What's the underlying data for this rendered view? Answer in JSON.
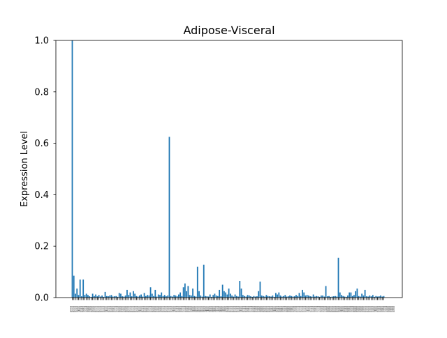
{
  "chart_data": {
    "type": "bar",
    "title": "Adipose-Visceral",
    "xlabel": "",
    "ylabel": "Expression Level",
    "ylim": [
      0,
      1.0
    ],
    "yticks": [
      "0.0",
      "0.2",
      "0.4",
      "0.6",
      "0.8",
      "1.0"
    ],
    "xtick_label_text": "012345678910111213141516171819202122232425262728293031323334353637383940414243444546474849505152535455565758596061626364656667686970717273747576777879808182838485868788899091929394959697989910010110210310410510610710810911011111211311411511611711811912012112212312412512612712812913013113213313413513613713813914014114214314414514614714814915015115215315415515615715815916016116216316416516616716816917017117217317417517617717817918018118218318418518618718818919019119219319419519619719819920020120220320420520620720820921021121221321421521621721821922022122222322422522622722822923023123223323423523623723823924024124224324424524624724824925025125225325425525625725825926026126226326426526626726826927027127227327427527627727827928028128228328428528628728828929029129229329429529629729829930030130230330430530630730830931031131231331431531631731831932032132232332432532632732832933033133233333433533633733833934034134234334434534634734834935035135235335435535635735835936036136236336436536636736836937037137237337437537637737837938038138238338438538638738838939039139239339439539639739839940040140240340440540640740840941041141241341441541641741841942042142242342442542642742842943043143243343443543643743843944044144244344444544644744844945045145245345445545645745845946046146246346446546646746846947047147247347447547647747847948048148248348448548648748848949049149249349449549649749849950050150250350450550650750850951051151251351451551651751851952052152252352452552652752852953053153253353453553653753853954054154254354454554654754854955055155255355455555655755855956056156256356456556656756856957057157257357457557657757857958058158258358458558658758858959059159259359459559659759859960060160260360460560660760860961061161261361461561661761861962062162262362462562662762862963063163263363463563663763863964064164264364464564664764864965065165265365465565665765865966066166266366466566666766866967067167267367467567667767867968068168268368468568668768868969069169269369469569669769869970070170270370470570670770870971071171271371471571671771871972072172272372472572672772872973073173273373473573673773873974074174274374474574674774874975075175275375475575675775875976076176276376476576676776876977077177277377477577677777877978078178278378478578678778878979079179279379479579679779879980080180280380480580680780880981081181281381481581681781881982082182282382482582682782882983083183283383483583683783883984084184284384484584684784884985085185285385485585685785885986086186286386486586686786886987087187287387487587687787887988088188288388488588688788888989089189289389489589689789889990090190290390490590690790890991091191291391491591691791891992092192292392492592692792892993093193293393493593693793893994094194294394494594694794894995095195295395495595695795895996096196296396496596696796896997097197297397497597697797897998098198298398498598698798898999099199299399499599699799899910001001",
    "categories": [
      "0",
      "1",
      "2",
      "3",
      "4",
      "5",
      "6",
      "7",
      "8",
      "9",
      "10",
      "11",
      "12",
      "13",
      "14",
      "15",
      "16",
      "17",
      "18",
      "19",
      "20",
      "21",
      "22",
      "23",
      "24",
      "25",
      "26",
      "27",
      "28",
      "29",
      "30",
      "31",
      "32",
      "33",
      "34",
      "35",
      "36",
      "37",
      "38",
      "39",
      "40",
      "41",
      "42",
      "43",
      "44",
      "45",
      "46",
      "47",
      "48",
      "49",
      "50",
      "51",
      "52",
      "53",
      "54",
      "55",
      "56",
      "57",
      "58",
      "59",
      "60",
      "61",
      "62",
      "63",
      "64",
      "65",
      "66",
      "67",
      "68",
      "69",
      "70",
      "71",
      "72",
      "73",
      "74",
      "75",
      "76",
      "77",
      "78",
      "79",
      "80",
      "81",
      "82",
      "83",
      "84",
      "85",
      "86",
      "87",
      "88",
      "89",
      "90",
      "91",
      "92",
      "93",
      "94",
      "95",
      "96",
      "97",
      "98",
      "99",
      "100",
      "101",
      "102",
      "103",
      "104",
      "105",
      "106",
      "107",
      "108",
      "109",
      "110",
      "111",
      "112",
      "113",
      "114",
      "115",
      "116",
      "117",
      "118",
      "119",
      "120",
      "121",
      "122",
      "123",
      "124",
      "125",
      "126",
      "127",
      "128",
      "129",
      "130",
      "131",
      "132",
      "133",
      "134",
      "135",
      "136",
      "137",
      "138",
      "139",
      "140",
      "141",
      "142",
      "143",
      "144",
      "145",
      "146",
      "147",
      "148",
      "149",
      "150",
      "151",
      "152",
      "153",
      "154",
      "155",
      "156",
      "157",
      "158",
      "159",
      "160",
      "161",
      "162",
      "163",
      "164",
      "165",
      "166",
      "167",
      "168",
      "169",
      "170",
      "171",
      "172",
      "173",
      "174",
      "175",
      "176",
      "177",
      "178",
      "179",
      "180",
      "181",
      "182",
      "183",
      "184",
      "185",
      "186",
      "187",
      "188",
      "189",
      "190",
      "191",
      "192",
      "193",
      "194",
      "195",
      "196",
      "197",
      "198",
      "199"
    ],
    "values": [
      1.0,
      0.085,
      0.015,
      0.035,
      0.01,
      0.07,
      0.005,
      0.07,
      0.01,
      0.015,
      0.01,
      0.005,
      0.003,
      0.015,
      0.006,
      0.012,
      0.005,
      0.01,
      0.004,
      0.008,
      0.003,
      0.022,
      0.006,
      0.005,
      0.008,
      0.01,
      0.004,
      0.005,
      0.006,
      0.003,
      0.018,
      0.015,
      0.005,
      0.004,
      0.008,
      0.03,
      0.01,
      0.02,
      0.005,
      0.025,
      0.015,
      0.006,
      0.004,
      0.008,
      0.012,
      0.004,
      0.018,
      0.006,
      0.01,
      0.008,
      0.04,
      0.015,
      0.006,
      0.03,
      0.004,
      0.012,
      0.01,
      0.02,
      0.006,
      0.01,
      0.005,
      0.008,
      0.625,
      0.006,
      0.004,
      0.01,
      0.008,
      0.005,
      0.012,
      0.02,
      0.006,
      0.04,
      0.055,
      0.025,
      0.045,
      0.01,
      0.008,
      0.035,
      0.006,
      0.004,
      0.12,
      0.025,
      0.008,
      0.004,
      0.128,
      0.006,
      0.005,
      0.004,
      0.012,
      0.003,
      0.01,
      0.015,
      0.008,
      0.006,
      0.03,
      0.005,
      0.05,
      0.025,
      0.02,
      0.012,
      0.035,
      0.015,
      0.008,
      0.004,
      0.012,
      0.006,
      0.004,
      0.065,
      0.035,
      0.01,
      0.006,
      0.004,
      0.01,
      0.008,
      0.005,
      0.003,
      0.006,
      0.004,
      0.005,
      0.025,
      0.062,
      0.008,
      0.006,
      0.004,
      0.01,
      0.006,
      0.005,
      0.004,
      0.008,
      0.003,
      0.018,
      0.012,
      0.02,
      0.008,
      0.004,
      0.006,
      0.01,
      0.004,
      0.005,
      0.008,
      0.006,
      0.004,
      0.005,
      0.01,
      0.006,
      0.018,
      0.006,
      0.03,
      0.02,
      0.008,
      0.01,
      0.008,
      0.005,
      0.004,
      0.012,
      0.004,
      0.006,
      0.005,
      0.003,
      0.008,
      0.008,
      0.004,
      0.045,
      0.005,
      0.006,
      0.003,
      0.004,
      0.005,
      0.006,
      0.004,
      0.155,
      0.02,
      0.01,
      0.006,
      0.004,
      0.003,
      0.008,
      0.02,
      0.02,
      0.006,
      0.01,
      0.025,
      0.035,
      0.006,
      0.004,
      0.015,
      0.008,
      0.03,
      0.005,
      0.004,
      0.008,
      0.005,
      0.01,
      0.003,
      0.006,
      0.004,
      0.005,
      0.008,
      0.004,
      0.006
    ],
    "bar_color": "#1f77b4",
    "grid": false,
    "legend": "none"
  }
}
